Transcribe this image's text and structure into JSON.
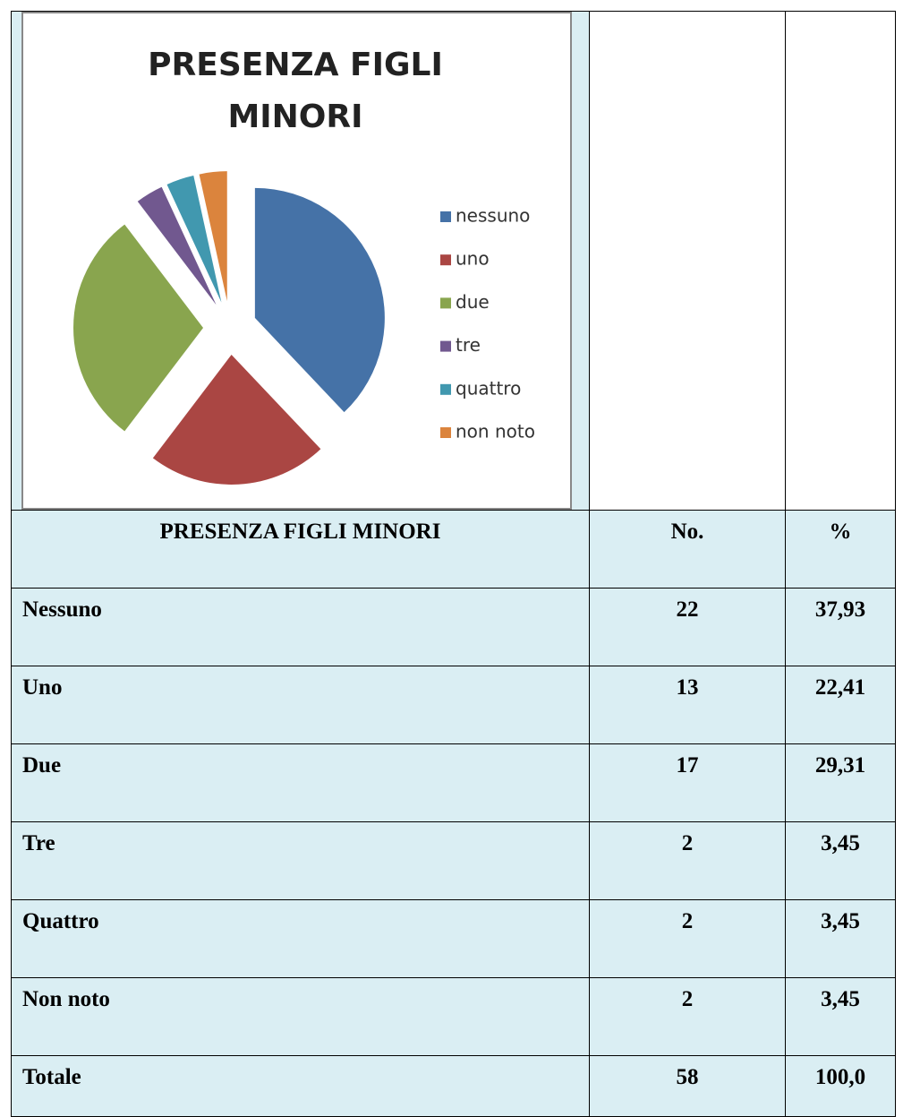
{
  "chart_data": {
    "type": "pie",
    "title": "PRESENZA FIGLI MINORI",
    "categories": [
      "nessuno",
      "uno",
      "due",
      "tre",
      "quattro",
      "non noto"
    ],
    "values": [
      22,
      13,
      17,
      2,
      2,
      2
    ],
    "colors": [
      "#4572a7",
      "#aa4643",
      "#89a54e",
      "#71588f",
      "#4198af",
      "#db843d"
    ],
    "legend": "right"
  },
  "table": {
    "header": [
      "PRESENZA FIGLI MINORI",
      "No.",
      "%"
    ],
    "rows": [
      [
        "Nessuno",
        "22",
        "37,93"
      ],
      [
        "Uno",
        "13",
        "22,41"
      ],
      [
        "Due",
        "17",
        "29,31"
      ],
      [
        "Tre",
        "2",
        "3,45"
      ],
      [
        "Quattro",
        "2",
        "3,45"
      ],
      [
        "Non noto",
        "2",
        "3,45"
      ],
      [
        "Totale",
        "58",
        "100,0"
      ]
    ]
  }
}
